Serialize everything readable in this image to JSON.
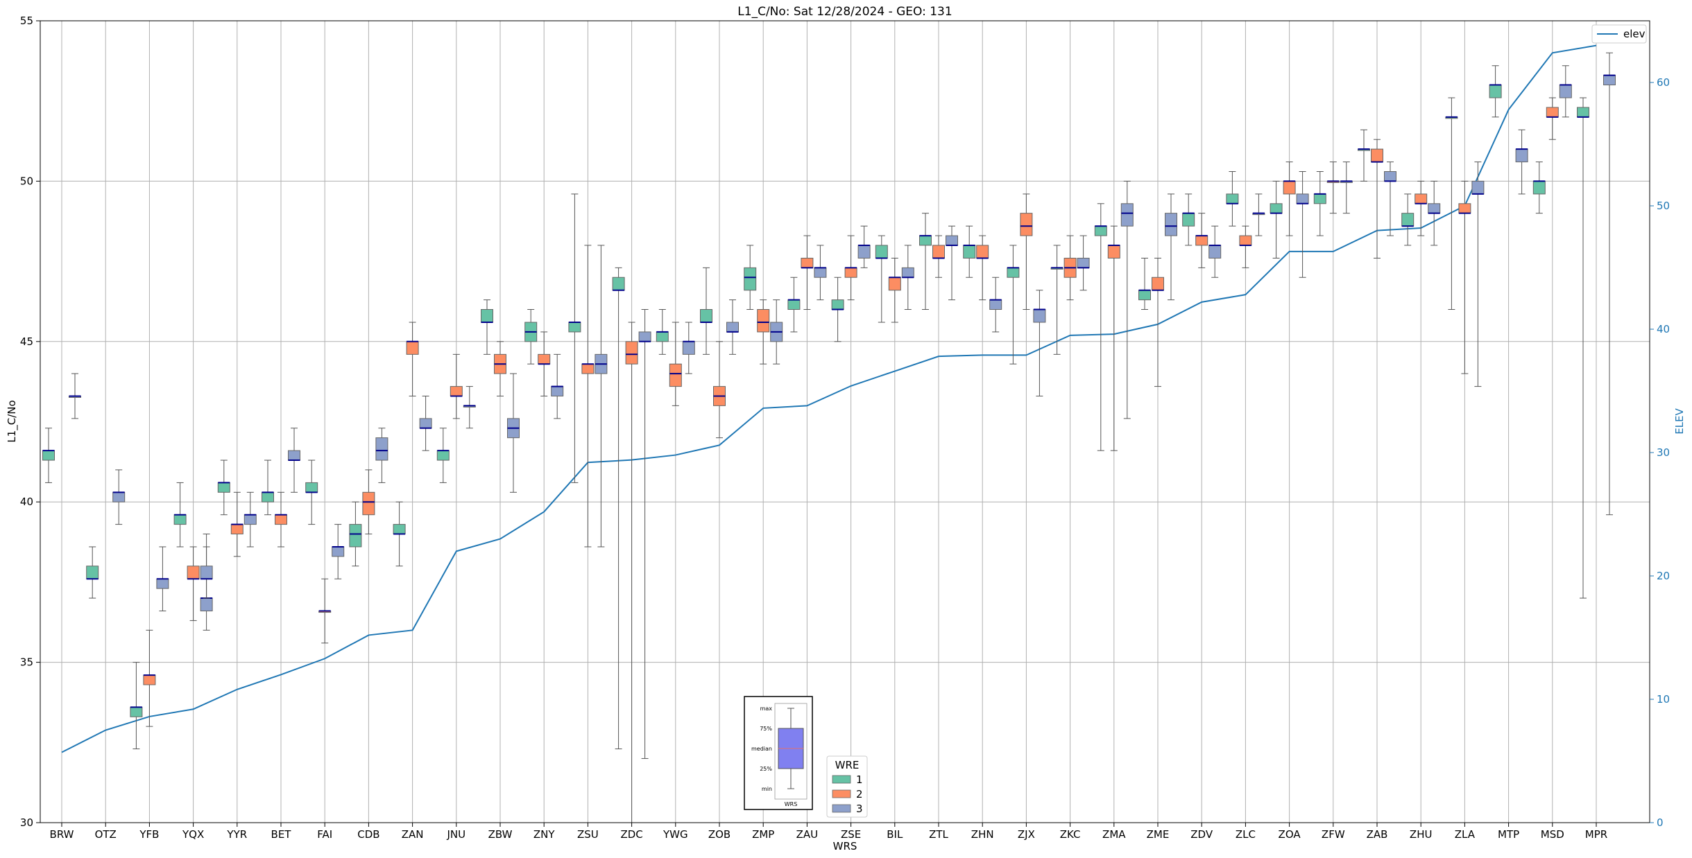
{
  "chart_data": {
    "type": "box",
    "title": "L1_C/No: Sat 12/28/2024 - GEO: 131",
    "xlabel": "WRS",
    "ylabel": "L1_C/No",
    "y2label": "ELEV",
    "ylim": [
      30,
      55
    ],
    "y2lim": [
      0,
      65
    ],
    "yticks": [
      "30",
      "35",
      "40",
      "45",
      "50",
      "55"
    ],
    "y2ticks": [
      "0",
      "10",
      "20",
      "30",
      "40",
      "50",
      "60"
    ],
    "grid": true,
    "colors": {
      "1": "#66c2a5",
      "2": "#fc8d62",
      "3": "#8da0cb",
      "median": "#00008b",
      "elev": "#1f77b4",
      "whisker": "#555555"
    },
    "categories": [
      "BRW",
      "OTZ",
      "YFB",
      "YQX",
      "YYR",
      "BET",
      "FAI",
      "CDB",
      "ZAN",
      "JNU",
      "ZBW",
      "ZNY",
      "ZSU",
      "ZDC",
      "YWG",
      "ZOB",
      "ZMP",
      "ZAU",
      "ZSE",
      "BIL",
      "ZTL",
      "ZHN",
      "ZJX",
      "ZKC",
      "ZMA",
      "ZME",
      "ZDV",
      "ZLC",
      "ZOA",
      "ZFW",
      "ZAB",
      "ZHU",
      "ZLA",
      "MTP",
      "MSD",
      "MPR"
    ],
    "boxes": [
      {
        "station": "BRW",
        "wre": 1,
        "min": 40.6,
        "q1": 41.3,
        "median": 41.6,
        "q3": 41.6,
        "max": 42.3
      },
      {
        "station": "BRW",
        "wre": 3,
        "min": 42.6,
        "q1": 43.3,
        "median": 43.3,
        "q3": 43.3,
        "max": 44.0
      },
      {
        "station": "OTZ",
        "wre": 3,
        "min": 39.3,
        "q1": 40.0,
        "median": 40.3,
        "q3": 40.3,
        "max": 41.0
      },
      {
        "station": "OTZ",
        "wre": 1,
        "min": 37.0,
        "q1": 37.6,
        "median": 37.6,
        "q3": 38.0,
        "max": 38.6
      },
      {
        "station": "YFB",
        "wre": 3,
        "min": 36.6,
        "q1": 37.3,
        "median": 37.6,
        "q3": 37.6,
        "max": 38.6
      },
      {
        "station": "YFB",
        "wre": 1,
        "min": 32.3,
        "q1": 33.3,
        "median": 33.6,
        "q3": 33.6,
        "max": 35.0
      },
      {
        "station": "YFB",
        "wre": 2,
        "min": 33.0,
        "q1": 34.3,
        "median": 34.6,
        "q3": 34.6,
        "max": 36.0
      },
      {
        "station": "YQX",
        "wre": 3,
        "min": 36.0,
        "q1": 36.6,
        "median": 37.0,
        "q3": 37.0,
        "max": 38.6
      },
      {
        "station": "YQX",
        "wre": 1,
        "min": 38.6,
        "q1": 39.3,
        "median": 39.6,
        "q3": 39.6,
        "max": 40.6
      },
      {
        "station": "YQX",
        "wre": 2,
        "min": 36.3,
        "q1": 37.6,
        "median": 37.6,
        "q3": 38.0,
        "max": 38.6
      },
      {
        "station": "YQX",
        "wre": 3,
        "min": 37.0,
        "q1": 37.6,
        "median": 37.6,
        "q3": 38.0,
        "max": 39.0
      },
      {
        "station": "YYR",
        "wre": 1,
        "min": 39.6,
        "q1": 40.3,
        "median": 40.6,
        "q3": 40.6,
        "max": 41.3
      },
      {
        "station": "YYR",
        "wre": 2,
        "min": 38.3,
        "q1": 39.0,
        "median": 39.3,
        "q3": 39.3,
        "max": 40.3
      },
      {
        "station": "YYR",
        "wre": 3,
        "min": 38.6,
        "q1": 39.3,
        "median": 39.6,
        "q3": 39.6,
        "max": 40.3
      },
      {
        "station": "BET",
        "wre": 1,
        "min": 39.6,
        "q1": 40.0,
        "median": 40.3,
        "q3": 40.3,
        "max": 41.3
      },
      {
        "station": "BET",
        "wre": 2,
        "min": 38.6,
        "q1": 39.3,
        "median": 39.6,
        "q3": 39.6,
        "max": 40.3
      },
      {
        "station": "BET",
        "wre": 3,
        "min": 40.3,
        "q1": 41.3,
        "median": 41.3,
        "q3": 41.6,
        "max": 42.3
      },
      {
        "station": "FAI",
        "wre": 1,
        "min": 39.3,
        "q1": 40.3,
        "median": 40.3,
        "q3": 40.6,
        "max": 41.3
      },
      {
        "station": "FAI",
        "wre": 2,
        "min": 35.6,
        "q1": 36.6,
        "median": 36.6,
        "q3": 36.6,
        "max": 37.6
      },
      {
        "station": "FAI",
        "wre": 3,
        "min": 37.6,
        "q1": 38.3,
        "median": 38.6,
        "q3": 38.6,
        "max": 39.3
      },
      {
        "station": "CDB",
        "wre": 1,
        "min": 38.0,
        "q1": 38.6,
        "median": 39.0,
        "q3": 39.3,
        "max": 40.0
      },
      {
        "station": "CDB",
        "wre": 2,
        "min": 39.0,
        "q1": 39.6,
        "median": 40.0,
        "q3": 40.3,
        "max": 41.0
      },
      {
        "station": "CDB",
        "wre": 3,
        "min": 40.6,
        "q1": 41.3,
        "median": 41.6,
        "q3": 42.0,
        "max": 42.3
      },
      {
        "station": "ZAN",
        "wre": 1,
        "min": 38.0,
        "q1": 39.0,
        "median": 39.0,
        "q3": 39.3,
        "max": 40.0
      },
      {
        "station": "ZAN",
        "wre": 2,
        "min": 43.3,
        "q1": 44.6,
        "median": 45.0,
        "q3": 45.0,
        "max": 45.6
      },
      {
        "station": "ZAN",
        "wre": 3,
        "min": 41.6,
        "q1": 42.3,
        "median": 42.3,
        "q3": 42.6,
        "max": 43.3
      },
      {
        "station": "JNU",
        "wre": 1,
        "min": 40.6,
        "q1": 41.3,
        "median": 41.6,
        "q3": 41.6,
        "max": 42.3
      },
      {
        "station": "JNU",
        "wre": 2,
        "min": 42.6,
        "q1": 43.3,
        "median": 43.3,
        "q3": 43.6,
        "max": 44.6
      },
      {
        "station": "JNU",
        "wre": 3,
        "min": 42.3,
        "q1": 43.0,
        "median": 43.0,
        "q3": 43.0,
        "max": 43.6
      },
      {
        "station": "ZBW",
        "wre": 1,
        "min": 44.6,
        "q1": 45.6,
        "median": 45.6,
        "q3": 46.0,
        "max": 46.3
      },
      {
        "station": "ZBW",
        "wre": 2,
        "min": 43.3,
        "q1": 44.0,
        "median": 44.3,
        "q3": 44.6,
        "max": 45.0
      },
      {
        "station": "ZBW",
        "wre": 3,
        "min": 40.3,
        "q1": 42.0,
        "median": 42.3,
        "q3": 42.6,
        "max": 44.0
      },
      {
        "station": "ZNY",
        "wre": 1,
        "min": 44.3,
        "q1": 45.0,
        "median": 45.3,
        "q3": 45.6,
        "max": 46.0
      },
      {
        "station": "ZNY",
        "wre": 2,
        "min": 43.3,
        "q1": 44.3,
        "median": 44.3,
        "q3": 44.6,
        "max": 45.3
      },
      {
        "station": "ZNY",
        "wre": 3,
        "min": 42.6,
        "q1": 43.3,
        "median": 43.6,
        "q3": 43.6,
        "max": 44.6
      },
      {
        "station": "ZSU",
        "wre": 1,
        "min": 40.6,
        "q1": 45.3,
        "median": 45.6,
        "q3": 45.6,
        "max": 49.6
      },
      {
        "station": "ZSU",
        "wre": 2,
        "min": 38.6,
        "q1": 44.0,
        "median": 44.3,
        "q3": 44.3,
        "max": 48.0
      },
      {
        "station": "ZSU",
        "wre": 3,
        "min": 38.6,
        "q1": 44.0,
        "median": 44.3,
        "q3": 44.6,
        "max": 48.0
      },
      {
        "station": "ZDC",
        "wre": 1,
        "min": 32.3,
        "q1": 46.6,
        "median": 46.6,
        "q3": 47.0,
        "max": 47.3
      },
      {
        "station": "ZDC",
        "wre": 2,
        "min": 30.0,
        "q1": 44.3,
        "median": 44.6,
        "q3": 45.0,
        "max": 45.6
      },
      {
        "station": "ZDC",
        "wre": 3,
        "min": 32.0,
        "q1": 45.0,
        "median": 45.0,
        "q3": 45.3,
        "max": 46.0
      },
      {
        "station": "YWG",
        "wre": 1,
        "min": 44.6,
        "q1": 45.0,
        "median": 45.3,
        "q3": 45.3,
        "max": 46.0
      },
      {
        "station": "YWG",
        "wre": 2,
        "min": 43.0,
        "q1": 43.6,
        "median": 44.0,
        "q3": 44.3,
        "max": 45.6
      },
      {
        "station": "YWG",
        "wre": 3,
        "min": 44.0,
        "q1": 44.6,
        "median": 45.0,
        "q3": 45.0,
        "max": 45.6
      },
      {
        "station": "ZOB",
        "wre": 1,
        "min": 44.6,
        "q1": 45.6,
        "median": 45.6,
        "q3": 46.0,
        "max": 47.3
      },
      {
        "station": "ZOB",
        "wre": 2,
        "min": 42.0,
        "q1": 43.0,
        "median": 43.3,
        "q3": 43.6,
        "max": 45.0
      },
      {
        "station": "ZOB",
        "wre": 3,
        "min": 44.6,
        "q1": 45.3,
        "median": 45.3,
        "q3": 45.6,
        "max": 46.3
      },
      {
        "station": "ZMP",
        "wre": 1,
        "min": 46.0,
        "q1": 46.6,
        "median": 47.0,
        "q3": 47.3,
        "max": 48.0
      },
      {
        "station": "ZMP",
        "wre": 2,
        "min": 44.3,
        "q1": 45.3,
        "median": 45.6,
        "q3": 46.0,
        "max": 46.3
      },
      {
        "station": "ZMP",
        "wre": 3,
        "min": 44.3,
        "q1": 45.0,
        "median": 45.3,
        "q3": 45.6,
        "max": 46.3
      },
      {
        "station": "ZAU",
        "wre": 1,
        "min": 45.3,
        "q1": 46.0,
        "median": 46.3,
        "q3": 46.3,
        "max": 47.0
      },
      {
        "station": "ZAU",
        "wre": 2,
        "min": 46.0,
        "q1": 47.3,
        "median": 47.3,
        "q3": 47.6,
        "max": 48.3
      },
      {
        "station": "ZAU",
        "wre": 3,
        "min": 46.3,
        "q1": 47.0,
        "median": 47.3,
        "q3": 47.3,
        "max": 48.0
      },
      {
        "station": "ZSE",
        "wre": 1,
        "min": 45.0,
        "q1": 46.0,
        "median": 46.0,
        "q3": 46.3,
        "max": 47.0
      },
      {
        "station": "ZSE",
        "wre": 2,
        "min": 46.3,
        "q1": 47.0,
        "median": 47.3,
        "q3": 47.3,
        "max": 48.3
      },
      {
        "station": "ZSE",
        "wre": 3,
        "min": 47.3,
        "q1": 47.6,
        "median": 48.0,
        "q3": 48.0,
        "max": 48.6
      },
      {
        "station": "BIL",
        "wre": 1,
        "min": 45.6,
        "q1": 47.6,
        "median": 47.6,
        "q3": 48.0,
        "max": 48.3
      },
      {
        "station": "BIL",
        "wre": 2,
        "min": 45.6,
        "q1": 46.6,
        "median": 47.0,
        "q3": 47.0,
        "max": 47.6
      },
      {
        "station": "BIL",
        "wre": 3,
        "min": 46.0,
        "q1": 47.0,
        "median": 47.0,
        "q3": 47.3,
        "max": 48.0
      },
      {
        "station": "ZTL",
        "wre": 1,
        "min": 46.0,
        "q1": 48.0,
        "median": 48.3,
        "q3": 48.3,
        "max": 49.0
      },
      {
        "station": "ZTL",
        "wre": 2,
        "min": 47.0,
        "q1": 47.6,
        "median": 47.6,
        "q3": 48.0,
        "max": 48.3
      },
      {
        "station": "ZTL",
        "wre": 3,
        "min": 46.3,
        "q1": 48.0,
        "median": 48.0,
        "q3": 48.3,
        "max": 48.6
      },
      {
        "station": "ZHN",
        "wre": 1,
        "min": 47.0,
        "q1": 47.6,
        "median": 48.0,
        "q3": 48.0,
        "max": 48.6
      },
      {
        "station": "ZHN",
        "wre": 2,
        "min": 46.3,
        "q1": 47.6,
        "median": 47.6,
        "q3": 48.0,
        "max": 48.3
      },
      {
        "station": "ZHN",
        "wre": 3,
        "min": 45.3,
        "q1": 46.0,
        "median": 46.3,
        "q3": 46.3,
        "max": 47.0
      },
      {
        "station": "ZJX",
        "wre": 1,
        "min": 44.3,
        "q1": 47.0,
        "median": 47.3,
        "q3": 47.3,
        "max": 48.0
      },
      {
        "station": "ZJX",
        "wre": 2,
        "min": 46.0,
        "q1": 48.3,
        "median": 48.6,
        "q3": 49.0,
        "max": 49.6
      },
      {
        "station": "ZJX",
        "wre": 3,
        "min": 43.3,
        "q1": 45.6,
        "median": 46.0,
        "q3": 46.0,
        "max": 46.6
      },
      {
        "station": "ZKC",
        "wre": 1,
        "min": 44.6,
        "q1": 47.3,
        "median": 47.3,
        "q3": 47.3,
        "max": 48.0
      },
      {
        "station": "ZKC",
        "wre": 2,
        "min": 46.3,
        "q1": 47.0,
        "median": 47.3,
        "q3": 47.6,
        "max": 48.3
      },
      {
        "station": "ZKC",
        "wre": 3,
        "min": 46.6,
        "q1": 47.3,
        "median": 47.3,
        "q3": 47.6,
        "max": 48.3
      },
      {
        "station": "ZMA",
        "wre": 1,
        "min": 41.6,
        "q1": 48.3,
        "median": 48.6,
        "q3": 48.6,
        "max": 49.3
      },
      {
        "station": "ZMA",
        "wre": 2,
        "min": 41.6,
        "q1": 47.6,
        "median": 48.0,
        "q3": 48.0,
        "max": 48.6
      },
      {
        "station": "ZMA",
        "wre": 3,
        "min": 42.6,
        "q1": 48.6,
        "median": 49.0,
        "q3": 49.3,
        "max": 50.0
      },
      {
        "station": "ZME",
        "wre": 1,
        "min": 46.0,
        "q1": 46.3,
        "median": 46.6,
        "q3": 46.6,
        "max": 47.6
      },
      {
        "station": "ZME",
        "wre": 2,
        "min": 43.6,
        "q1": 46.6,
        "median": 46.6,
        "q3": 47.0,
        "max": 47.6
      },
      {
        "station": "ZME",
        "wre": 3,
        "min": 46.3,
        "q1": 48.3,
        "median": 48.6,
        "q3": 49.0,
        "max": 49.6
      },
      {
        "station": "ZDV",
        "wre": 1,
        "min": 48.0,
        "q1": 48.6,
        "median": 49.0,
        "q3": 49.0,
        "max": 49.6
      },
      {
        "station": "ZDV",
        "wre": 2,
        "min": 47.3,
        "q1": 48.0,
        "median": 48.3,
        "q3": 48.3,
        "max": 49.0
      },
      {
        "station": "ZDV",
        "wre": 3,
        "min": 47.0,
        "q1": 47.6,
        "median": 48.0,
        "q3": 48.0,
        "max": 48.6
      },
      {
        "station": "ZLC",
        "wre": 1,
        "min": 48.6,
        "q1": 49.3,
        "median": 49.3,
        "q3": 49.6,
        "max": 50.3
      },
      {
        "station": "ZLC",
        "wre": 2,
        "min": 47.3,
        "q1": 48.0,
        "median": 48.0,
        "q3": 48.3,
        "max": 48.6
      },
      {
        "station": "ZLC",
        "wre": 3,
        "min": 48.3,
        "q1": 49.0,
        "median": 49.0,
        "q3": 49.0,
        "max": 49.6
      },
      {
        "station": "ZOA",
        "wre": 1,
        "min": 47.6,
        "q1": 49.0,
        "median": 49.0,
        "q3": 49.3,
        "max": 50.0
      },
      {
        "station": "ZOA",
        "wre": 2,
        "min": 48.3,
        "q1": 49.6,
        "median": 50.0,
        "q3": 50.0,
        "max": 50.6
      },
      {
        "station": "ZOA",
        "wre": 3,
        "min": 47.0,
        "q1": 49.3,
        "median": 49.3,
        "q3": 49.6,
        "max": 50.3
      },
      {
        "station": "ZFW",
        "wre": 1,
        "min": 48.3,
        "q1": 49.3,
        "median": 49.6,
        "q3": 49.6,
        "max": 50.3
      },
      {
        "station": "ZFW",
        "wre": 2,
        "min": 49.0,
        "q1": 50.0,
        "median": 50.0,
        "q3": 50.0,
        "max": 50.6
      },
      {
        "station": "ZFW",
        "wre": 3,
        "min": 49.0,
        "q1": 50.0,
        "median": 50.0,
        "q3": 50.0,
        "max": 50.6
      },
      {
        "station": "ZAB",
        "wre": 1,
        "min": 50.0,
        "q1": 51.0,
        "median": 51.0,
        "q3": 51.0,
        "max": 51.6
      },
      {
        "station": "ZAB",
        "wre": 2,
        "min": 47.6,
        "q1": 50.6,
        "median": 50.6,
        "q3": 51.0,
        "max": 51.3
      },
      {
        "station": "ZAB",
        "wre": 3,
        "min": 48.3,
        "q1": 50.0,
        "median": 50.0,
        "q3": 50.3,
        "max": 50.6
      },
      {
        "station": "ZHU",
        "wre": 1,
        "min": 48.0,
        "q1": 48.6,
        "median": 48.6,
        "q3": 49.0,
        "max": 49.6
      },
      {
        "station": "ZHU",
        "wre": 2,
        "min": 48.3,
        "q1": 49.3,
        "median": 49.3,
        "q3": 49.6,
        "max": 50.0
      },
      {
        "station": "ZHU",
        "wre": 3,
        "min": 48.0,
        "q1": 49.0,
        "median": 49.0,
        "q3": 49.3,
        "max": 50.0
      },
      {
        "station": "ZLA",
        "wre": 1,
        "min": 46.0,
        "q1": 52.0,
        "median": 52.0,
        "q3": 52.0,
        "max": 52.6
      },
      {
        "station": "ZLA",
        "wre": 2,
        "min": 44.0,
        "q1": 49.0,
        "median": 49.0,
        "q3": 49.3,
        "max": 50.0
      },
      {
        "station": "ZLA",
        "wre": 3,
        "min": 43.6,
        "q1": 49.6,
        "median": 49.6,
        "q3": 50.0,
        "max": 50.6
      },
      {
        "station": "MTP",
        "wre": 1,
        "min": 52.0,
        "q1": 52.6,
        "median": 53.0,
        "q3": 53.0,
        "max": 53.6
      },
      {
        "station": "MTP",
        "wre": 3,
        "min": 49.6,
        "q1": 50.6,
        "median": 51.0,
        "q3": 51.0,
        "max": 51.6
      },
      {
        "station": "MSD",
        "wre": 1,
        "min": 49.0,
        "q1": 49.6,
        "median": 50.0,
        "q3": 50.0,
        "max": 50.6
      },
      {
        "station": "MSD",
        "wre": 2,
        "min": 51.3,
        "q1": 52.0,
        "median": 52.0,
        "q3": 52.3,
        "max": 52.6
      },
      {
        "station": "MSD",
        "wre": 3,
        "min": 52.0,
        "q1": 52.6,
        "median": 53.0,
        "q3": 53.0,
        "max": 53.6
      },
      {
        "station": "MPR",
        "wre": 1,
        "min": 37.0,
        "q1": 52.0,
        "median": 52.0,
        "q3": 52.3,
        "max": 52.6
      },
      {
        "station": "MPR",
        "wre": 3,
        "min": 39.6,
        "q1": 53.0,
        "median": 53.3,
        "q3": 53.3,
        "max": 54.0
      }
    ],
    "elev": {
      "name": "elev",
      "values": [
        5.7,
        7.5,
        8.6,
        9.2,
        10.8,
        12.0,
        13.3,
        15.2,
        15.6,
        22.0,
        23.0,
        25.2,
        29.2,
        29.4,
        29.8,
        30.6,
        33.6,
        33.8,
        35.4,
        36.6,
        37.8,
        37.9,
        37.9,
        39.5,
        39.6,
        40.4,
        42.2,
        42.8,
        46.3,
        46.3,
        48.0,
        48.2,
        50.0,
        57.8,
        62.4,
        63.0
      ],
      "ylabel": "ELEV"
    },
    "legend": {
      "title": "WRE",
      "entries": [
        "1",
        "2",
        "3"
      ],
      "placement": "lower-center"
    },
    "elev_legend": {
      "label": "elev",
      "placement": "top-right"
    },
    "key_box": {
      "labels": [
        "max",
        "75%",
        "median",
        "25%",
        "min"
      ],
      "xlabel": "WRS"
    }
  }
}
